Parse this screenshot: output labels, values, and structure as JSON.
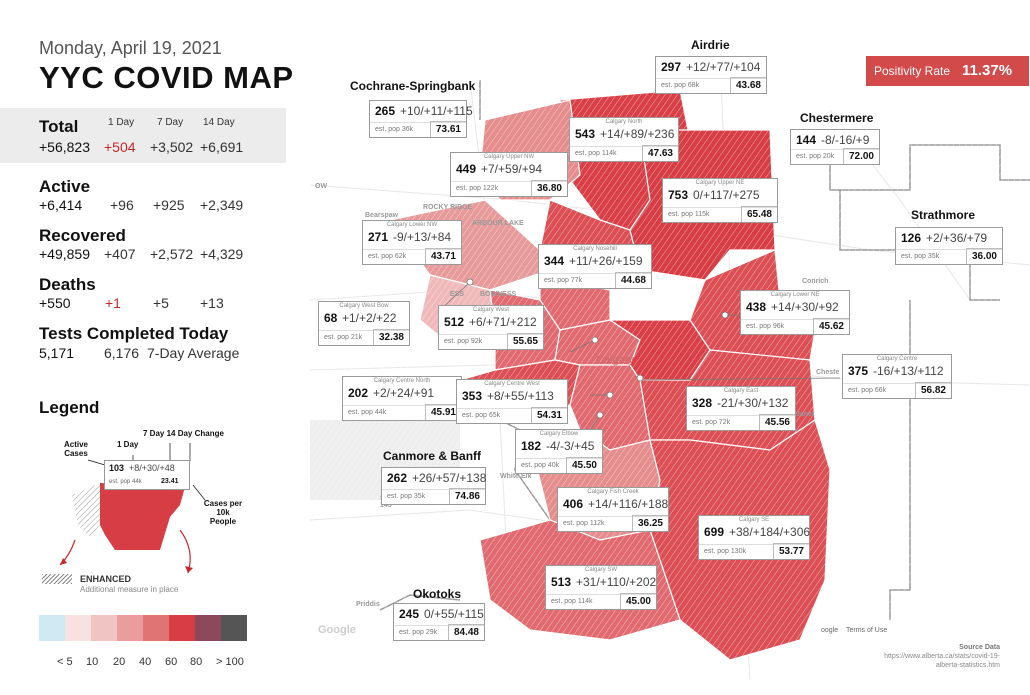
{
  "header": {
    "date": "Monday, April 19, 2021",
    "title": "YYC COVID MAP"
  },
  "columns": {
    "d1": "1 Day",
    "d7": "7 Day",
    "d14": "14 Day"
  },
  "stats": {
    "total": {
      "label": "Total",
      "value": "+56,823",
      "d1": "+504",
      "d7": "+3,502",
      "d14": "+6,691"
    },
    "active": {
      "label": "Active",
      "value": "+6,414",
      "d1": "+96",
      "d7": "+925",
      "d14": "+2,349"
    },
    "recovered": {
      "label": "Recovered",
      "value": "+49,859",
      "d1": "+407",
      "d7": "+2,572",
      "d14": "+4,329"
    },
    "deaths": {
      "label": "Deaths",
      "value": "+550",
      "d1": "+1",
      "d7": "+5",
      "d14": "+13"
    },
    "tests": {
      "label": "Tests Completed Today",
      "value": "5,171",
      "avg": "6,176",
      "avg_label": "7-Day Average"
    }
  },
  "legend": {
    "title": "Legend",
    "active_cases": "Active Cases",
    "one_day": "1 Day",
    "change": "7 Day 14 Day Change",
    "sample_cases": "103",
    "sample_change": "+8/+30/+48",
    "sample_pop": "est. pop 44k",
    "sample_rate": "23.41",
    "per10k": "Cases per 10k People",
    "enhanced": "ENHANCED",
    "enhanced_sub": "Additional measure in place",
    "scale_colors": [
      "#cfeaf2",
      "#f8e1e1",
      "#f1c4c4",
      "#e99d9d",
      "#e07474",
      "#d63d44",
      "#8a4a5c",
      "#555555"
    ],
    "scale_labels": [
      "< 5",
      "10",
      "20",
      "40",
      "60",
      "80",
      "> 100"
    ]
  },
  "positivity": {
    "label": "Positivity Rate",
    "value": "11.37%"
  },
  "outer_titles": {
    "airdrie": "Airdrie",
    "cochrane": "Cochrane-Springbank",
    "chestermere": "Chestermere",
    "strathmore": "Strathmore",
    "canmore": "Canmore & Banff",
    "okotoks": "Okotoks"
  },
  "map_labels": [
    "OW",
    "Bearspaw",
    "ROCKY RIDGE",
    "ARBOUR LAKE",
    "Conrich",
    "Calgary",
    "Cheste",
    "Janet",
    "White Elk",
    "SUU T'INA NATION 145",
    "Priddis",
    "BOWNESS",
    "ESS"
  ],
  "regions": [
    {
      "id": "airdrie",
      "name": "",
      "cases": "297",
      "change": "+12/+77/+104",
      "pop": "est. pop 68k",
      "rate": "43.68"
    },
    {
      "id": "cochrane",
      "name": "",
      "cases": "265",
      "change": "+10/+11/+115",
      "pop": "est. pop 36k",
      "rate": "73.61"
    },
    {
      "id": "north",
      "name": "Calgary North",
      "cases": "543",
      "change": "+14/+89/+236",
      "pop": "est. pop 114k",
      "rate": "47.63"
    },
    {
      "id": "chestermere",
      "name": "",
      "cases": "144",
      "change": "-8/-16/+9",
      "pop": "est. pop 20k",
      "rate": "72.00"
    },
    {
      "id": "uppernw",
      "name": "Calgary Upper NW",
      "cases": "449",
      "change": "+7/+59/+94",
      "pop": "est. pop 122k",
      "rate": "36.80"
    },
    {
      "id": "upperne",
      "name": "Calgary Upper NE",
      "cases": "753",
      "change": "0/+117/+275",
      "pop": "est. pop 115k",
      "rate": "65.48"
    },
    {
      "id": "strathmore",
      "name": "",
      "cases": "126",
      "change": "+2/+36/+79",
      "pop": "est. pop 35k",
      "rate": "36.00"
    },
    {
      "id": "lowernw",
      "name": "Calgary Lower NW",
      "cases": "271",
      "change": "-9/+13/+84",
      "pop": "est. pop 62k",
      "rate": "43.71"
    },
    {
      "id": "nosehill",
      "name": "Calgary Nosehill",
      "cases": "344",
      "change": "+11/+26/+159",
      "pop": "est. pop 77k",
      "rate": "44.68"
    },
    {
      "id": "lowerne",
      "name": "Calgary Lower NE",
      "cases": "438",
      "change": "+14/+30/+92",
      "pop": "est. pop 96k",
      "rate": "45.62"
    },
    {
      "id": "westbow",
      "name": "Calgary West Bow",
      "cases": "68",
      "change": "+1/+2/+22",
      "pop": "est. pop 21k",
      "rate": "32.38"
    },
    {
      "id": "west",
      "name": "Calgary West",
      "cases": "512",
      "change": "+6/+71/+212",
      "pop": "est. pop 92k",
      "rate": "55.65"
    },
    {
      "id": "centre",
      "name": "Calgary Centre",
      "cases": "375",
      "change": "-16/+13/+112",
      "pop": "est. pop 66k",
      "rate": "56.82"
    },
    {
      "id": "centrenorth",
      "name": "Calgary Centre North",
      "cases": "202",
      "change": "+2/+24/+91",
      "pop": "est. pop 44k",
      "rate": "45.91"
    },
    {
      "id": "centrewest",
      "name": "Calgary Centre West",
      "cases": "353",
      "change": "+8/+55/+113",
      "pop": "est. pop 65k",
      "rate": "54.31"
    },
    {
      "id": "east",
      "name": "Calgary East",
      "cases": "328",
      "change": "-21/+30/+132",
      "pop": "est. pop 72k",
      "rate": "45.56"
    },
    {
      "id": "elbow",
      "name": "Calgary Elbow",
      "cases": "182",
      "change": "-4/-3/+45",
      "pop": "est. pop 40k",
      "rate": "45.50"
    },
    {
      "id": "canmore",
      "name": "",
      "cases": "262",
      "change": "+26/+57/+138",
      "pop": "est. pop 35k",
      "rate": "74.86"
    },
    {
      "id": "fishcreek",
      "name": "Calgary Fish Creek",
      "cases": "406",
      "change": "+14/+116/+188",
      "pop": "est. pop 112k",
      "rate": "36.25"
    },
    {
      "id": "se",
      "name": "Calgary SE",
      "cases": "699",
      "change": "+38/+184/+306",
      "pop": "est. pop 130k",
      "rate": "53.77"
    },
    {
      "id": "sw",
      "name": "Calgary SW",
      "cases": "513",
      "change": "+31/+110/+202",
      "pop": "est. pop 114k",
      "rate": "45.00"
    },
    {
      "id": "okotoks",
      "name": "",
      "cases": "245",
      "change": "0/+55/+115",
      "pop": "est. pop 29k",
      "rate": "84.48"
    }
  ],
  "source": {
    "label": "Source Data",
    "url": "https://www.alberta.ca/stats/covid-19-alberta-statistics.htm"
  },
  "google": {
    "logo": "Google",
    "attribution": "oogle",
    "terms": "Terms of Use"
  }
}
